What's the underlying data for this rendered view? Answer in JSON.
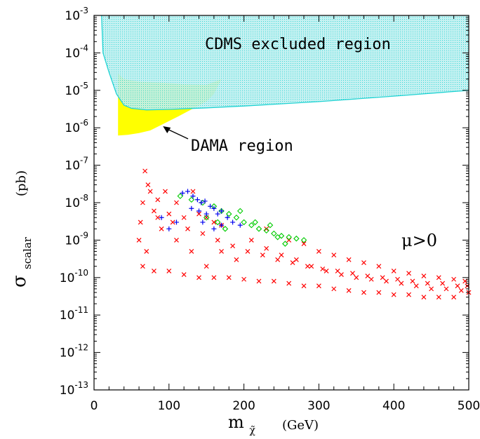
{
  "chart_data": {
    "type": "scatter",
    "title": "",
    "xlabel": {
      "main": "m",
      "subscript": "χ̃",
      "unit": "(GeV)"
    },
    "ylabel": {
      "main": "σ",
      "subscript": "scalar",
      "unit": "(pb)"
    },
    "xlim": [
      0,
      500
    ],
    "ylim": [
      1e-13,
      0.001
    ],
    "yscale": "log",
    "grid": false,
    "x_ticks": [
      "0",
      "100",
      "200",
      "300",
      "400",
      "500"
    ],
    "y_ticks": [
      {
        "base": "10",
        "exp": "-3",
        "value": 0.001
      },
      {
        "base": "10",
        "exp": "-4",
        "value": 0.0001
      },
      {
        "base": "10",
        "exp": "-5",
        "value": 1e-05
      },
      {
        "base": "10",
        "exp": "-6",
        "value": 1e-06
      },
      {
        "base": "10",
        "exp": "-7",
        "value": 1e-07
      },
      {
        "base": "10",
        "exp": "-8",
        "value": 1e-08
      },
      {
        "base": "10",
        "exp": "-9",
        "value": 1e-09
      },
      {
        "base": "10",
        "exp": "-10",
        "value": 1e-10
      },
      {
        "base": "10",
        "exp": "-11",
        "value": 1e-11
      },
      {
        "base": "10",
        "exp": "-12",
        "value": 1e-12
      },
      {
        "base": "10",
        "exp": "-13",
        "value": 1e-13
      }
    ],
    "regions": [
      {
        "label": "CDMS excluded region",
        "fill_color": "#bfeff0",
        "edge_color": "#22d3d3",
        "boundary": [
          [
            10,
            0.001
          ],
          [
            12,
            0.0001
          ],
          [
            20,
            3e-05
          ],
          [
            30,
            8e-06
          ],
          [
            40,
            4e-06
          ],
          [
            50,
            3.3e-06
          ],
          [
            70,
            3e-06
          ],
          [
            100,
            3.1e-06
          ],
          [
            150,
            3.4e-06
          ],
          [
            200,
            3.8e-06
          ],
          [
            300,
            5e-06
          ],
          [
            400,
            7e-06
          ],
          [
            500,
            1e-05
          ]
        ]
      },
      {
        "label": "DAMA region",
        "fill_color": "#ffff00",
        "outline": [
          [
            32,
            2.8e-05
          ],
          [
            40,
            2e-05
          ],
          [
            60,
            1.7e-05
          ],
          [
            90,
            1.6e-05
          ],
          [
            120,
            1.45e-05
          ],
          [
            150,
            1.4e-05
          ],
          [
            170,
            2e-05
          ],
          [
            160,
            8e-06
          ],
          [
            150,
            5e-06
          ],
          [
            130,
            3.1e-06
          ],
          [
            110,
            1.9e-06
          ],
          [
            90,
            1.2e-06
          ],
          [
            75,
            8.5e-07
          ],
          [
            60,
            7.2e-07
          ],
          [
            45,
            6.5e-07
          ],
          [
            32,
            6.2e-07
          ]
        ]
      }
    ],
    "annotations": [
      {
        "text": "CDMS excluded region"
      },
      {
        "text": "DAMA region",
        "arrow_to": [
          92,
          1.1e-06
        ]
      },
      {
        "text": "μ>0"
      }
    ],
    "series": [
      {
        "marker": "x",
        "color": "#ff0000",
        "points": [
          [
            68,
            7e-08
          ],
          [
            72,
            3e-08
          ],
          [
            75,
            2e-08
          ],
          [
            85,
            1.2e-08
          ],
          [
            95,
            2e-08
          ],
          [
            110,
            1e-08
          ],
          [
            132,
            2e-08
          ],
          [
            65,
            1e-08
          ],
          [
            62,
            3e-09
          ],
          [
            80,
            6e-09
          ],
          [
            100,
            5e-09
          ],
          [
            120,
            4e-09
          ],
          [
            150,
            4e-09
          ],
          [
            160,
            3e-09
          ],
          [
            170,
            2.5e-09
          ],
          [
            140,
            5e-09
          ],
          [
            60,
            1e-09
          ],
          [
            70,
            5e-10
          ],
          [
            90,
            2e-09
          ],
          [
            110,
            1e-09
          ],
          [
            130,
            5e-10
          ],
          [
            150,
            2e-10
          ],
          [
            170,
            5e-10
          ],
          [
            190,
            3e-10
          ],
          [
            210,
            1e-09
          ],
          [
            230,
            6e-10
          ],
          [
            250,
            4e-10
          ],
          [
            270,
            3e-10
          ],
          [
            290,
            2e-10
          ],
          [
            310,
            1.5e-10
          ],
          [
            330,
            1.2e-10
          ],
          [
            350,
            1e-10
          ],
          [
            370,
            9e-11
          ],
          [
            390,
            8e-11
          ],
          [
            410,
            7e-11
          ],
          [
            430,
            6e-11
          ],
          [
            450,
            5e-11
          ],
          [
            470,
            5e-11
          ],
          [
            490,
            4.5e-11
          ],
          [
            500,
            4e-11
          ],
          [
            65,
            2e-10
          ],
          [
            80,
            1.5e-10
          ],
          [
            100,
            1.5e-10
          ],
          [
            120,
            1.2e-10
          ],
          [
            140,
            1e-10
          ],
          [
            160,
            1e-10
          ],
          [
            180,
            1e-10
          ],
          [
            200,
            9e-11
          ],
          [
            220,
            8e-11
          ],
          [
            240,
            8e-11
          ],
          [
            260,
            7e-11
          ],
          [
            280,
            6e-11
          ],
          [
            300,
            6e-11
          ],
          [
            320,
            5e-11
          ],
          [
            340,
            4.5e-11
          ],
          [
            360,
            4e-11
          ],
          [
            380,
            4e-11
          ],
          [
            400,
            3.5e-11
          ],
          [
            420,
            3.5e-11
          ],
          [
            440,
            3e-11
          ],
          [
            460,
            3e-11
          ],
          [
            480,
            3e-11
          ],
          [
            85,
            4e-09
          ],
          [
            105,
            3e-09
          ],
          [
            125,
            2e-09
          ],
          [
            145,
            1.5e-09
          ],
          [
            165,
            1e-09
          ],
          [
            185,
            7e-10
          ],
          [
            205,
            5e-10
          ],
          [
            225,
            4e-10
          ],
          [
            245,
            3e-10
          ],
          [
            265,
            2.5e-10
          ],
          [
            285,
            2e-10
          ],
          [
            305,
            1.7e-10
          ],
          [
            325,
            1.5e-10
          ],
          [
            345,
            1.3e-10
          ],
          [
            365,
            1.1e-10
          ],
          [
            385,
            1e-10
          ],
          [
            405,
            9e-11
          ],
          [
            425,
            8e-11
          ],
          [
            445,
            7e-11
          ],
          [
            465,
            7e-11
          ],
          [
            485,
            6e-11
          ],
          [
            498,
            6e-11
          ],
          [
            230,
            2e-09
          ],
          [
            260,
            1e-09
          ],
          [
            280,
            8e-10
          ],
          [
            300,
            5e-10
          ],
          [
            320,
            4e-10
          ],
          [
            340,
            3e-10
          ],
          [
            360,
            2.5e-10
          ],
          [
            380,
            2e-10
          ],
          [
            400,
            1.5e-10
          ],
          [
            420,
            1.3e-10
          ],
          [
            440,
            1.1e-10
          ],
          [
            460,
            1e-10
          ],
          [
            480,
            9e-11
          ],
          [
            495,
            8e-11
          ]
        ]
      },
      {
        "marker": "diamond",
        "color": "#00cc00",
        "points": [
          [
            115,
            1.5e-08
          ],
          [
            130,
            1.2e-08
          ],
          [
            145,
            1e-08
          ],
          [
            160,
            8e-09
          ],
          [
            170,
            6e-09
          ],
          [
            180,
            5e-09
          ],
          [
            190,
            4e-09
          ],
          [
            200,
            3e-09
          ],
          [
            210,
            2.5e-09
          ],
          [
            220,
            2e-09
          ],
          [
            230,
            1.8e-09
          ],
          [
            240,
            1.5e-09
          ],
          [
            250,
            1.3e-09
          ],
          [
            260,
            1.2e-09
          ],
          [
            270,
            1.1e-09
          ],
          [
            280,
            1e-09
          ],
          [
            150,
            4e-09
          ],
          [
            165,
            3e-09
          ],
          [
            175,
            2e-09
          ],
          [
            195,
            6e-09
          ],
          [
            215,
            3e-09
          ],
          [
            235,
            2.5e-09
          ],
          [
            245,
            1.2e-09
          ],
          [
            255,
            8e-10
          ]
        ]
      },
      {
        "marker": "plus",
        "color": "#0000ee",
        "points": [
          [
            118,
            1.8e-08
          ],
          [
            125,
            2e-08
          ],
          [
            132,
            1.5e-08
          ],
          [
            138,
            1.2e-08
          ],
          [
            143,
            1e-08
          ],
          [
            148,
            1.1e-08
          ],
          [
            155,
            8e-09
          ],
          [
            160,
            7e-09
          ],
          [
            165,
            5e-09
          ],
          [
            170,
            6e-09
          ],
          [
            178,
            4e-09
          ],
          [
            185,
            3e-09
          ],
          [
            195,
            2.5e-09
          ],
          [
            130,
            7e-09
          ],
          [
            140,
            6e-09
          ],
          [
            150,
            5e-09
          ],
          [
            160,
            2e-09
          ],
          [
            170,
            2.5e-09
          ],
          [
            90,
            4e-09
          ],
          [
            100,
            2e-09
          ],
          [
            110,
            3e-09
          ],
          [
            145,
            3e-09
          ]
        ]
      }
    ]
  }
}
